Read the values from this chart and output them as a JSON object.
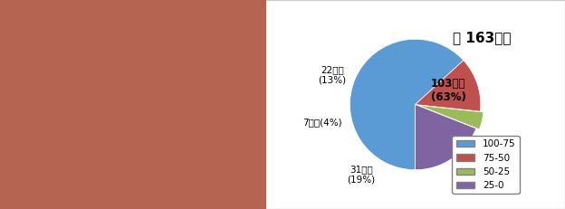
{
  "pie_values": [
    103,
    22,
    7,
    31
  ],
  "pie_labels": [
    "103개소\n(63%)",
    "22개소\n(13%)",
    "7개소(4%)",
    "31개소\n(19%)"
  ],
  "pie_colors": [
    "#5b9bd5",
    "#c0504d",
    "#9bbb59",
    "#8064a2"
  ],
  "legend_labels": [
    "100-75",
    "75-50",
    "50-25",
    "25-0"
  ],
  "legend_colors": [
    "#5b9bd5",
    "#c0504d",
    "#9bbb59",
    "#8064a2"
  ],
  "title": "애 163개소",
  "title_display": "애 163개소",
  "total_text": "씽 163개소",
  "background_color": "#ffffff",
  "label_fontsize": 9,
  "title_fontsize": 14
}
